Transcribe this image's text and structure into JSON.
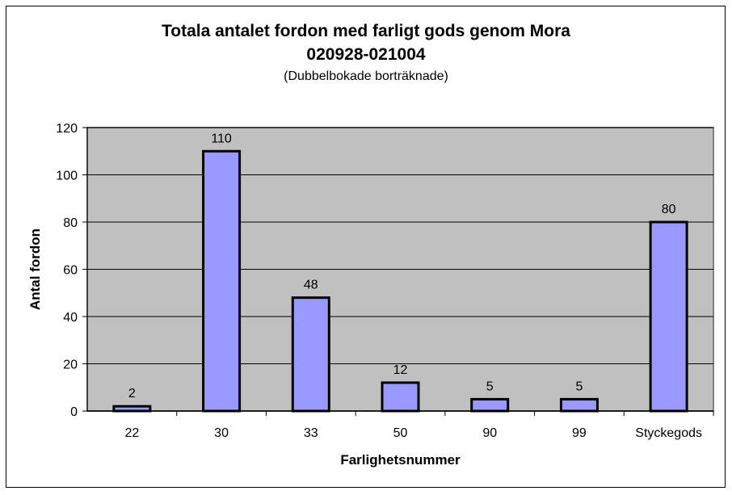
{
  "chart_data": {
    "type": "bar",
    "title": "Totala antalet fordon med farligt gods genom Mora",
    "subtitle": "020928-021004",
    "note": "(Dubbelbokade borträknade)",
    "xlabel": "Farlighetsnummer",
    "ylabel": "Antal fordon",
    "categories": [
      "22",
      "30",
      "33",
      "50",
      "90",
      "99",
      "Styckegods"
    ],
    "values": [
      2,
      110,
      48,
      12,
      5,
      5,
      80
    ],
    "data_labels": [
      "2",
      "110",
      "48",
      "12",
      "5",
      "5",
      "80"
    ],
    "ylim": [
      0,
      120
    ],
    "yticks": [
      "0",
      "20",
      "40",
      "60",
      "80",
      "100",
      "120"
    ],
    "grid": true,
    "legend": "none",
    "colors": {
      "bar_fill": "#9999ff",
      "bar_stroke": "#000000",
      "plot_background": "#c0c0c0",
      "gridline": "#000000"
    }
  }
}
